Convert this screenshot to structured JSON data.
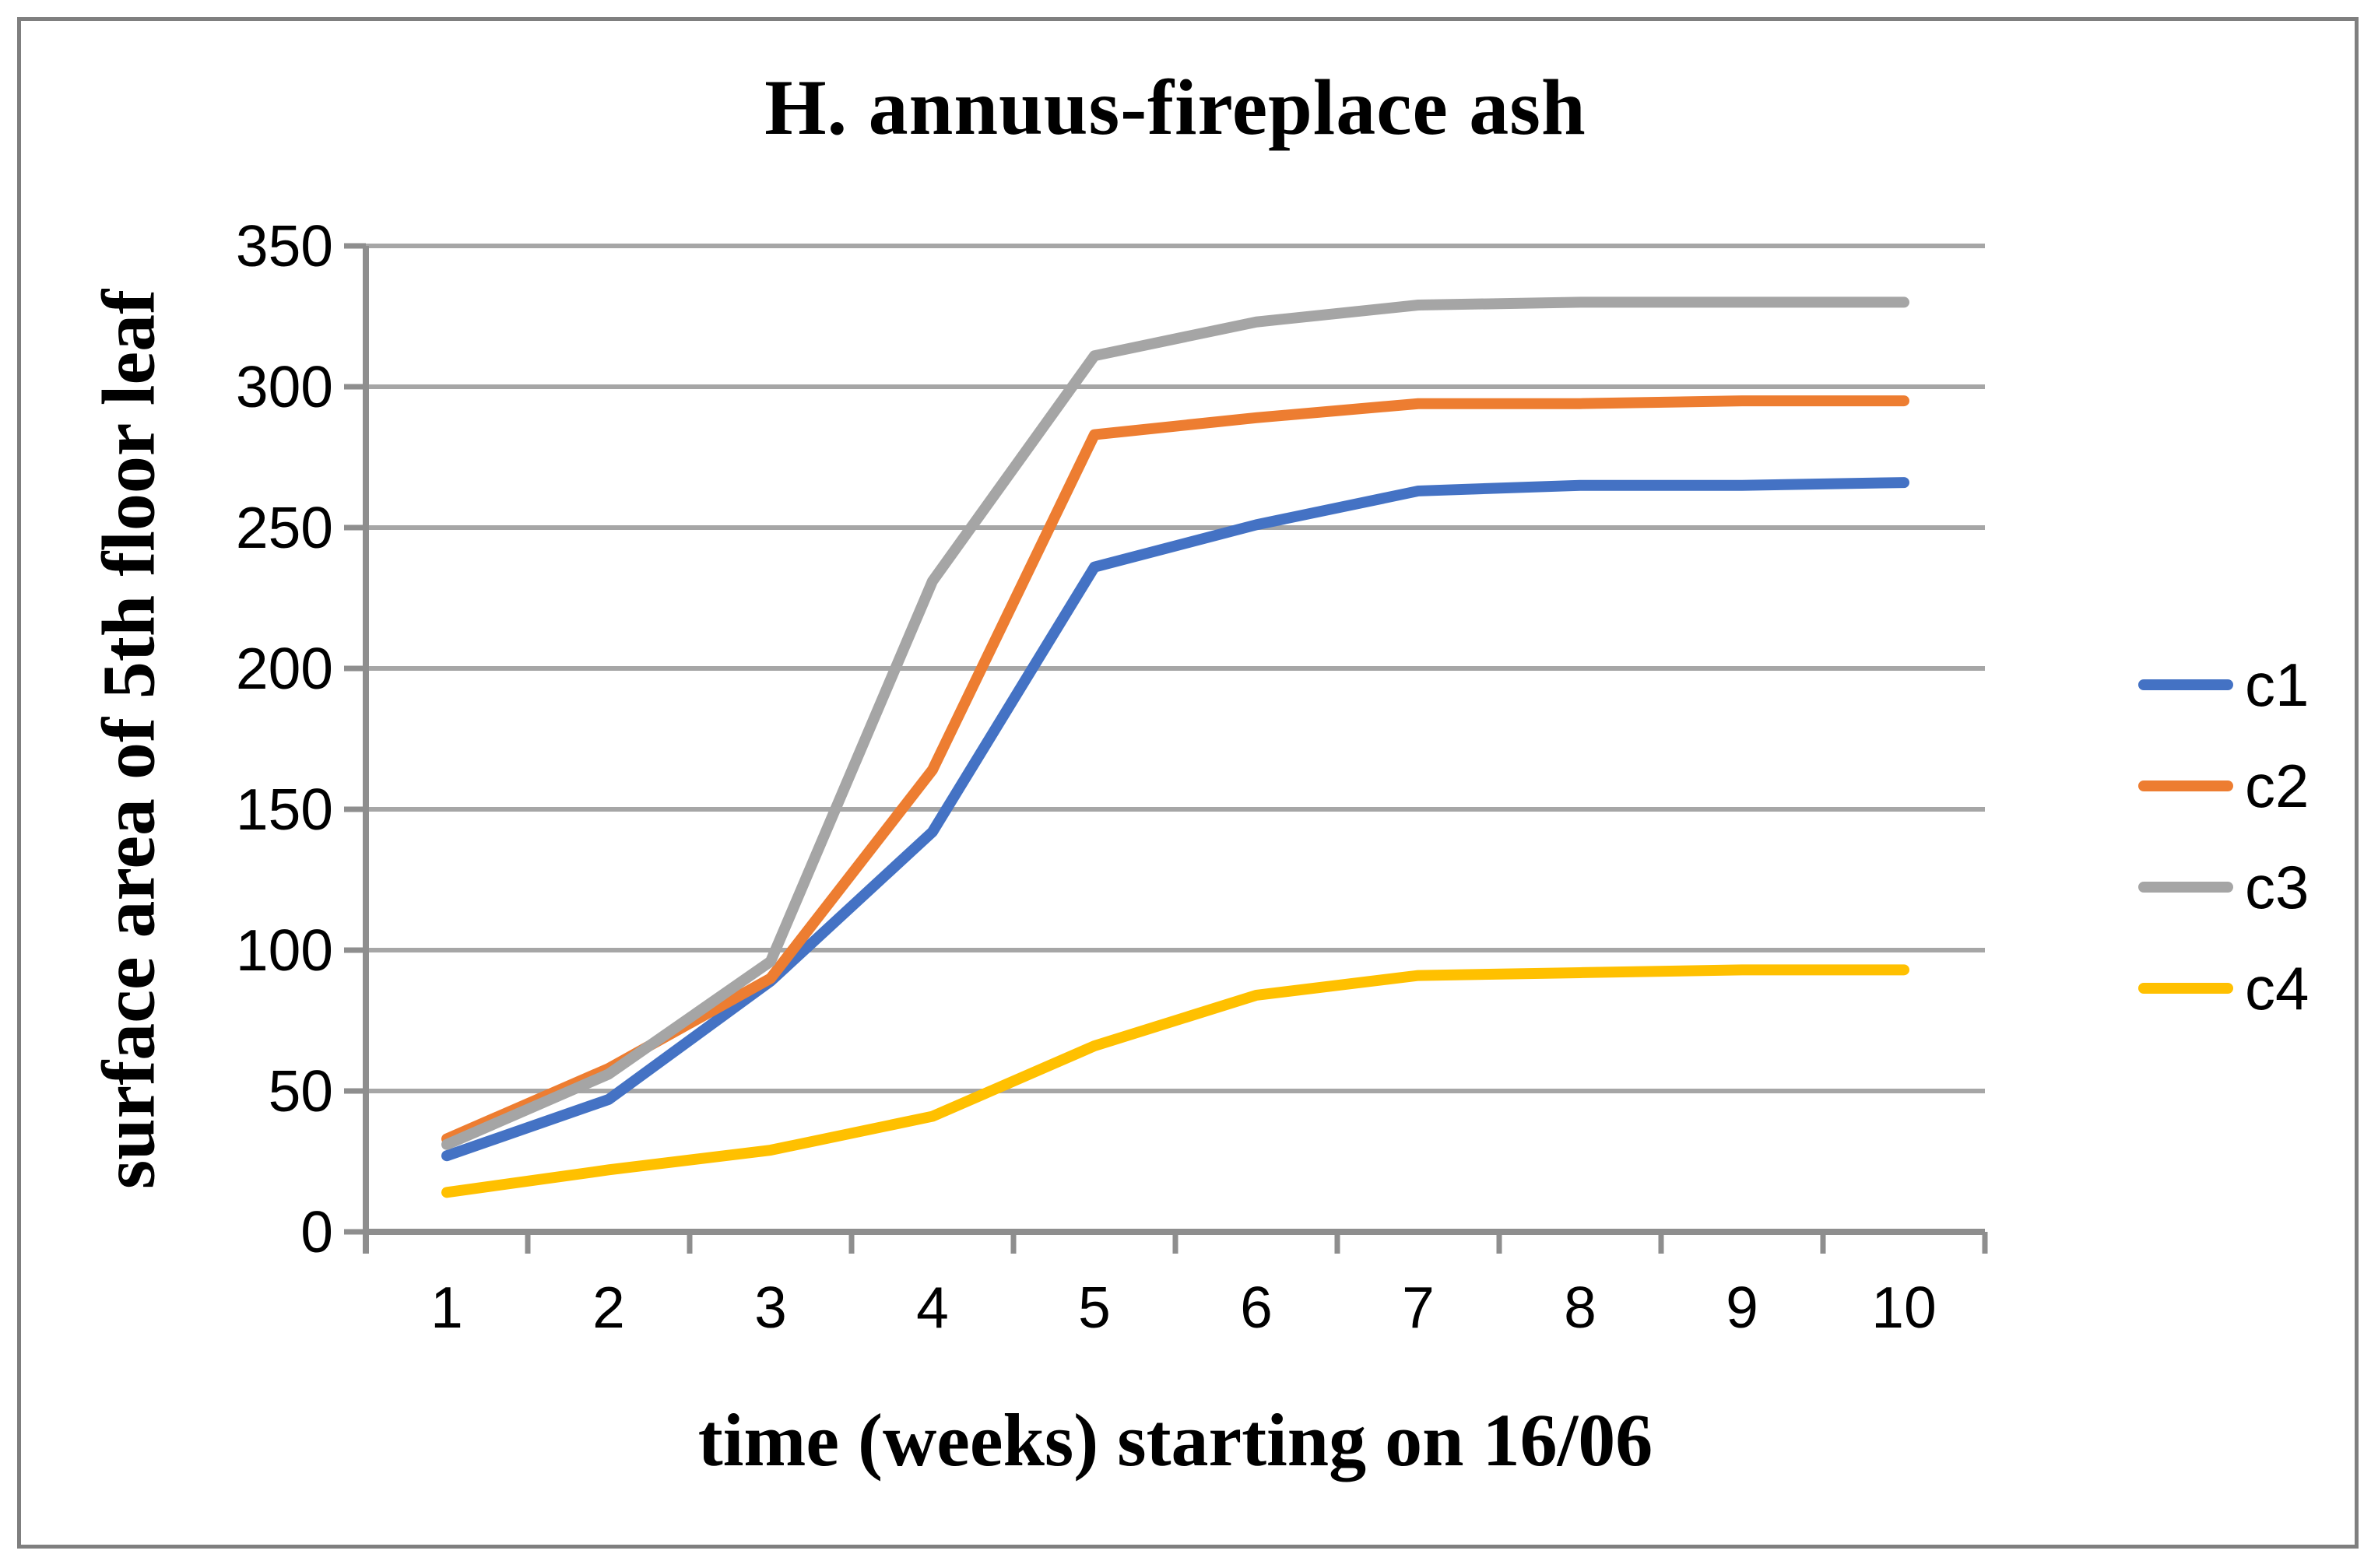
{
  "chart_data": {
    "type": "line",
    "title": "H. annuus-fireplace ash",
    "xlabel": "time (weeks) starting on 16/06",
    "ylabel": "surface area of 5th floor leaf",
    "categories": [
      "1",
      "2",
      "3",
      "4",
      "5",
      "6",
      "7",
      "8",
      "9",
      "10"
    ],
    "series": [
      {
        "name": "c1",
        "color": "#4472C4",
        "values": [
          27,
          47,
          89,
          142,
          236,
          251,
          263,
          265,
          265,
          266
        ]
      },
      {
        "name": "c2",
        "color": "#ED7D31",
        "values": [
          33,
          58,
          90,
          164,
          283,
          289,
          294,
          294,
          295,
          295
        ]
      },
      {
        "name": "c3",
        "color": "#A5A5A5",
        "values": [
          31,
          56,
          96,
          231,
          311,
          323,
          329,
          330,
          330,
          330
        ]
      },
      {
        "name": "c4",
        "color": "#FFC000",
        "values": [
          14,
          22,
          29,
          41,
          66,
          84,
          91,
          92,
          93,
          93
        ]
      }
    ],
    "ylim": [
      0,
      350
    ],
    "ytick_step": 50,
    "yticks": [
      "0",
      "50",
      "100",
      "150",
      "200",
      "250",
      "300",
      "350"
    ],
    "grid": true,
    "legend_position": "right"
  },
  "colors": {
    "gridline": "#A6A6A6",
    "axis": "#8E8E8E",
    "border": "#7F7F7F",
    "background": "#FFFFFF",
    "text": "#000000"
  }
}
